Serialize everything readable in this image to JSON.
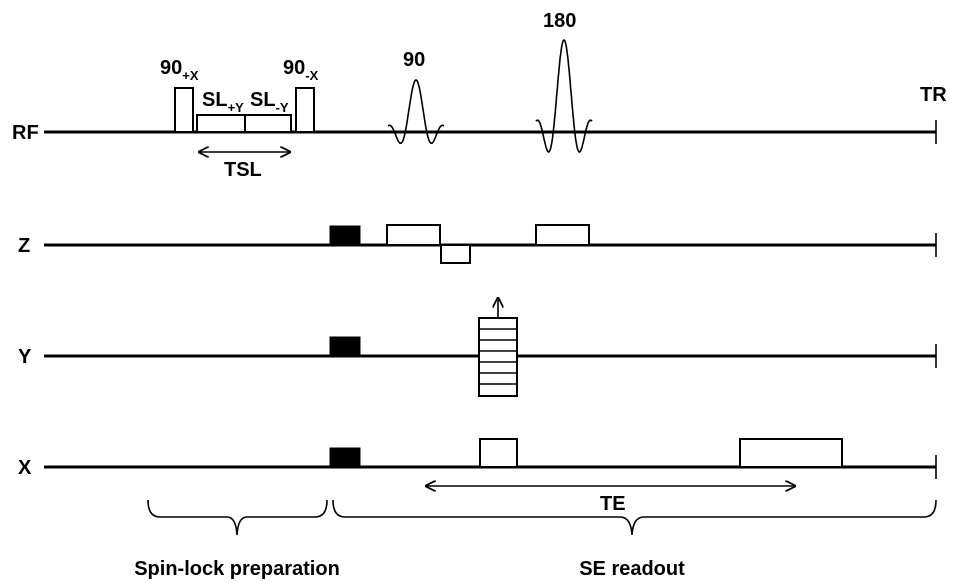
{
  "rows": {
    "rf": "RF",
    "z": "Z",
    "y": "Y",
    "x": "X"
  },
  "rf_labels": {
    "pulse_90_plus": "90",
    "pulse_90_plus_sub": "+X",
    "spin_lock_plus": "SL",
    "spin_lock_plus_sub": "+Y",
    "spin_lock_minus": "SL",
    "spin_lock_minus_sub": "-Y",
    "pulse_90_minus": "90",
    "pulse_90_minus_sub": "-X",
    "excitation": "90",
    "refocusing": "180",
    "tr": "TR"
  },
  "intervals": {
    "tsl": "TSL",
    "te": "TE"
  },
  "sections": {
    "preparation": "Spin-lock preparation",
    "readout": "SE readout"
  }
}
